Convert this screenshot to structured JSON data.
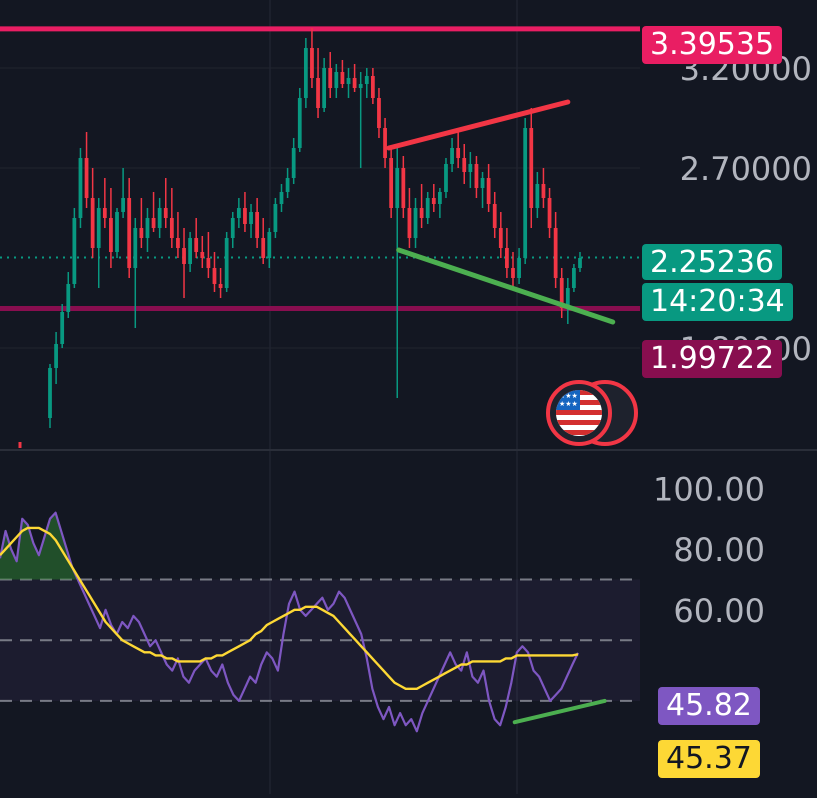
{
  "chart_data": [
    {
      "type": "candlestick",
      "title": "",
      "price_axis_ticks": [
        "3.20000",
        "2.70000",
        "1.80000"
      ],
      "ylim": [
        1.3,
        3.45
      ],
      "horizontal_levels": [
        {
          "value": 3.39535,
          "label": "3.39535",
          "color": "#e91e63"
        },
        {
          "value": 1.99722,
          "label": "1.99722",
          "color": "#880e4f"
        }
      ],
      "current_price": {
        "value": 2.25236,
        "label": "2.25236",
        "countdown": "14:20:34",
        "color": "#089981"
      },
      "trendlines": [
        {
          "name": "upper",
          "color": "#f23645",
          "points": [
            [
              0.476,
              2.8
            ],
            [
              0.695,
              3.03
            ]
          ]
        },
        {
          "name": "lower",
          "color": "#4caf50",
          "points": [
            [
              0.488,
              2.29
            ],
            [
              0.75,
              1.93
            ]
          ]
        }
      ],
      "candles": [
        [
          1.45,
          1.72,
          1.4,
          1.7
        ],
        [
          1.7,
          1.88,
          1.62,
          1.82
        ],
        [
          1.82,
          2.02,
          1.8,
          1.98
        ],
        [
          1.98,
          2.18,
          1.95,
          2.12
        ],
        [
          2.12,
          2.5,
          2.1,
          2.45
        ],
        [
          2.45,
          2.8,
          2.4,
          2.75
        ],
        [
          2.75,
          2.88,
          2.5,
          2.55
        ],
        [
          2.55,
          2.7,
          2.25,
          2.3
        ],
        [
          2.3,
          2.55,
          2.1,
          2.5
        ],
        [
          2.5,
          2.65,
          2.4,
          2.45
        ],
        [
          2.45,
          2.6,
          2.2,
          2.28
        ],
        [
          2.28,
          2.5,
          2.25,
          2.48
        ],
        [
          2.48,
          2.7,
          2.45,
          2.55
        ],
        [
          2.55,
          2.65,
          2.15,
          2.2
        ],
        [
          2.2,
          2.45,
          1.9,
          2.4
        ],
        [
          2.4,
          2.55,
          2.3,
          2.35
        ],
        [
          2.35,
          2.5,
          2.28,
          2.45
        ],
        [
          2.45,
          2.58,
          2.38,
          2.4
        ],
        [
          2.4,
          2.55,
          2.35,
          2.5
        ],
        [
          2.5,
          2.65,
          2.4,
          2.45
        ],
        [
          2.45,
          2.6,
          2.3,
          2.35
        ],
        [
          2.35,
          2.48,
          2.25,
          2.3
        ],
        [
          2.3,
          2.4,
          2.05,
          2.22
        ],
        [
          2.22,
          2.38,
          2.18,
          2.35
        ],
        [
          2.35,
          2.45,
          2.25,
          2.28
        ],
        [
          2.28,
          2.36,
          2.2,
          2.25
        ],
        [
          2.25,
          2.38,
          2.15,
          2.2
        ],
        [
          2.2,
          2.28,
          2.08,
          2.12
        ],
        [
          2.12,
          2.2,
          2.05,
          2.1
        ],
        [
          2.1,
          2.38,
          2.08,
          2.35
        ],
        [
          2.35,
          2.48,
          2.3,
          2.45
        ],
        [
          2.45,
          2.55,
          2.4,
          2.5
        ],
        [
          2.5,
          2.58,
          2.38,
          2.42
        ],
        [
          2.42,
          2.52,
          2.35,
          2.48
        ],
        [
          2.48,
          2.55,
          2.3,
          2.35
        ],
        [
          2.35,
          2.45,
          2.22,
          2.25
        ],
        [
          2.25,
          2.4,
          2.2,
          2.38
        ],
        [
          2.38,
          2.55,
          2.35,
          2.52
        ],
        [
          2.52,
          2.62,
          2.48,
          2.58
        ],
        [
          2.58,
          2.7,
          2.55,
          2.65
        ],
        [
          2.65,
          2.85,
          2.62,
          2.8
        ],
        [
          2.8,
          3.1,
          2.78,
          3.05
        ],
        [
          3.05,
          3.35,
          3.0,
          3.3
        ],
        [
          3.3,
          3.4,
          3.1,
          3.15
        ],
        [
          3.15,
          3.3,
          2.95,
          3.0
        ],
        [
          3.0,
          3.25,
          2.98,
          3.2
        ],
        [
          3.2,
          3.28,
          3.05,
          3.1
        ],
        [
          3.1,
          3.22,
          3.05,
          3.18
        ],
        [
          3.18,
          3.24,
          3.1,
          3.12
        ],
        [
          3.12,
          3.2,
          3.05,
          3.15
        ],
        [
          3.15,
          3.22,
          3.08,
          3.1
        ],
        [
          3.1,
          3.18,
          2.7,
          3.12
        ],
        [
          3.12,
          3.2,
          3.05,
          3.16
        ],
        [
          3.16,
          3.2,
          3.02,
          3.05
        ],
        [
          3.05,
          3.1,
          2.85,
          2.9
        ],
        [
          2.9,
          2.95,
          2.7,
          2.75
        ],
        [
          2.75,
          2.8,
          2.45,
          2.5
        ],
        [
          2.5,
          2.8,
          1.55,
          2.7
        ],
        [
          2.7,
          2.76,
          2.45,
          2.5
        ],
        [
          2.5,
          2.6,
          2.3,
          2.35
        ],
        [
          2.35,
          2.55,
          2.3,
          2.5
        ],
        [
          2.5,
          2.62,
          2.4,
          2.45
        ],
        [
          2.45,
          2.58,
          2.42,
          2.55
        ],
        [
          2.55,
          2.62,
          2.48,
          2.52
        ],
        [
          2.52,
          2.6,
          2.45,
          2.58
        ],
        [
          2.58,
          2.75,
          2.55,
          2.72
        ],
        [
          2.72,
          2.85,
          2.68,
          2.8
        ],
        [
          2.8,
          2.88,
          2.7,
          2.75
        ],
        [
          2.75,
          2.82,
          2.62,
          2.68
        ],
        [
          2.68,
          2.78,
          2.6,
          2.72
        ],
        [
          2.72,
          2.76,
          2.55,
          2.6
        ],
        [
          2.6,
          2.68,
          2.5,
          2.65
        ],
        [
          2.65,
          2.72,
          2.48,
          2.52
        ],
        [
          2.52,
          2.58,
          2.35,
          2.4
        ],
        [
          2.4,
          2.48,
          2.25,
          2.3
        ],
        [
          2.3,
          2.4,
          2.15,
          2.2
        ],
        [
          2.2,
          2.28,
          2.1,
          2.15
        ],
        [
          2.15,
          2.3,
          2.12,
          2.25
        ],
        [
          2.25,
          2.95,
          2.22,
          2.9
        ],
        [
          2.9,
          3.0,
          2.4,
          2.5
        ],
        [
          2.5,
          2.68,
          2.45,
          2.62
        ],
        [
          2.62,
          2.7,
          2.5,
          2.55
        ],
        [
          2.55,
          2.6,
          2.35,
          2.4
        ],
        [
          2.4,
          2.48,
          2.1,
          2.15
        ],
        [
          2.15,
          2.2,
          1.95,
          2.0
        ],
        [
          2.0,
          2.15,
          1.92,
          2.1
        ],
        [
          2.1,
          2.22,
          2.08,
          2.2
        ],
        [
          2.2,
          2.28,
          2.18,
          2.25
        ]
      ]
    },
    {
      "type": "line",
      "title": "",
      "ylim": [
        0,
        112
      ],
      "y_ticks": [
        "100.00",
        "80.00",
        "60.00"
      ],
      "dashed_levels": [
        70,
        50,
        30
      ],
      "band": [
        30,
        70
      ],
      "series": [
        {
          "color": "#7e57c2",
          "last_label": "45.82",
          "values": [
            77,
            86,
            80,
            76,
            90,
            88,
            82,
            78,
            84,
            90,
            92,
            86,
            80,
            74,
            70,
            66,
            62,
            58,
            54,
            60,
            55,
            52,
            56,
            54,
            58,
            56,
            52,
            48,
            50,
            46,
            42,
            40,
            44,
            38,
            36,
            40,
            42,
            44,
            40,
            38,
            42,
            36,
            32,
            30,
            34,
            38,
            36,
            42,
            46,
            44,
            40,
            52,
            62,
            66,
            60,
            58,
            60,
            62,
            64,
            60,
            62,
            66,
            64,
            60,
            56,
            52,
            44,
            34,
            28,
            24,
            28,
            22,
            26,
            22,
            24,
            20,
            26,
            30,
            34,
            38,
            42,
            46,
            42,
            40,
            46,
            38,
            36,
            40,
            30,
            24,
            22,
            28,
            36,
            46,
            48,
            46,
            40,
            38,
            34,
            30,
            32,
            34,
            38,
            42,
            45.82
          ]
        },
        {
          "color": "#fdd835",
          "last_label": "45.37",
          "values": [
            78,
            80,
            82,
            84,
            86,
            87,
            87,
            87,
            86,
            85,
            83,
            80,
            77,
            74,
            71,
            68,
            65,
            62,
            59,
            56,
            54,
            52,
            50,
            49,
            48,
            47,
            46,
            46,
            45,
            45,
            44,
            44,
            43,
            43,
            43,
            43,
            43,
            44,
            44,
            45,
            45,
            46,
            47,
            48,
            49,
            50,
            52,
            53,
            55,
            56,
            57,
            58,
            59,
            60,
            60,
            61,
            61,
            61,
            60,
            59,
            58,
            56,
            54,
            52,
            50,
            48,
            46,
            44,
            42,
            40,
            38,
            36,
            35,
            34,
            34,
            34,
            35,
            36,
            37,
            38,
            39,
            40,
            41,
            42,
            42,
            43,
            43,
            43,
            43,
            43,
            43,
            44,
            44,
            45,
            45,
            45,
            45,
            45,
            45,
            45,
            45,
            45,
            45,
            45,
            45.37
          ]
        }
      ],
      "trendlines": [
        {
          "color": "#4caf50",
          "points": [
            [
              0.63,
              23
            ],
            [
              0.74,
              30
            ]
          ]
        }
      ]
    }
  ]
}
